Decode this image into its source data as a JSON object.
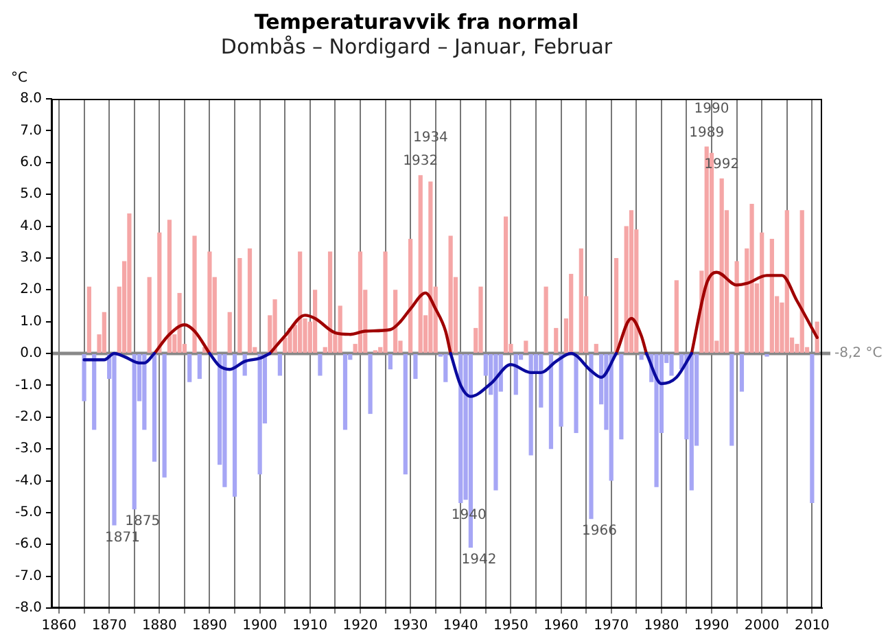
{
  "chart_data": {
    "type": "bar",
    "title": "Temperaturavvik fra normal",
    "subtitle": "Dombås – Nordigard – Januar, Februar",
    "ylabel": "°C",
    "x": [
      1865,
      1866,
      1867,
      1868,
      1869,
      1870,
      1871,
      1872,
      1873,
      1874,
      1875,
      1876,
      1877,
      1878,
      1879,
      1880,
      1881,
      1882,
      1883,
      1884,
      1885,
      1886,
      1887,
      1888,
      1889,
      1890,
      1891,
      1892,
      1893,
      1894,
      1895,
      1896,
      1897,
      1898,
      1899,
      1900,
      1901,
      1902,
      1903,
      1904,
      1905,
      1906,
      1907,
      1908,
      1909,
      1910,
      1911,
      1912,
      1913,
      1914,
      1915,
      1916,
      1917,
      1918,
      1919,
      1920,
      1921,
      1922,
      1923,
      1924,
      1925,
      1926,
      1927,
      1928,
      1929,
      1930,
      1931,
      1932,
      1933,
      1934,
      1935,
      1936,
      1937,
      1938,
      1939,
      1940,
      1941,
      1942,
      1943,
      1944,
      1945,
      1946,
      1947,
      1948,
      1949,
      1950,
      1951,
      1952,
      1953,
      1954,
      1955,
      1956,
      1957,
      1958,
      1959,
      1960,
      1961,
      1962,
      1963,
      1964,
      1965,
      1966,
      1967,
      1968,
      1969,
      1970,
      1971,
      1972,
      1973,
      1974,
      1975,
      1976,
      1977,
      1978,
      1979,
      1980,
      1981,
      1982,
      1983,
      1984,
      1985,
      1986,
      1987,
      1988,
      1989,
      1990,
      1991,
      1992,
      1993,
      1994,
      1995,
      1996,
      1997,
      1998,
      1999,
      2000,
      2001,
      2002,
      2003,
      2004,
      2005,
      2006,
      2007,
      2008,
      2009,
      2010,
      2011
    ],
    "series": [
      {
        "values": [
          -1.5,
          2.1,
          -2.4,
          0.6,
          1.3,
          -0.8,
          -5.4,
          2.1,
          2.9,
          4.4,
          -4.9,
          -1.5,
          -2.4,
          2.4,
          -3.4,
          3.8,
          -3.9,
          4.2,
          0.6,
          1.9,
          0.3,
          -0.9,
          3.7,
          -0.8,
          0.2,
          3.2,
          2.4,
          -3.5,
          -4.2,
          1.3,
          -4.5,
          3.0,
          -0.7,
          3.3,
          0.2,
          -3.8,
          -2.2,
          1.2,
          1.7,
          -0.7,
          0.5,
          0.8,
          0.9,
          3.2,
          1.1,
          1.0,
          2.0,
          -0.7,
          0.2,
          3.2,
          0.6,
          1.5,
          -2.4,
          -0.2,
          0.3,
          3.2,
          2.0,
          -1.9,
          0.1,
          0.2,
          3.2,
          -0.5,
          2.0,
          0.4,
          -3.8,
          3.6,
          -0.8,
          5.6,
          1.2,
          5.4,
          2.1,
          -0.1,
          -0.9,
          3.7,
          2.4,
          -4.7,
          -4.6,
          -6.1,
          0.8,
          2.1,
          -0.7,
          -1.3,
          -4.3,
          -1.2,
          4.3,
          0.3,
          -1.3,
          -0.2,
          0.4,
          -3.2,
          -0.6,
          -1.7,
          2.1,
          -3.0,
          0.8,
          -2.3,
          1.1,
          2.5,
          -2.5,
          3.3,
          1.8,
          -5.2,
          0.3,
          -1.6,
          -2.4,
          -4.0,
          3.0,
          -2.7,
          4.0,
          4.5,
          3.9,
          -0.2,
          null,
          -0.9,
          -4.2,
          -2.5,
          -0.3,
          -0.7,
          2.3,
          -0.5,
          -2.7,
          -4.3,
          -2.9,
          2.6,
          6.5,
          6.3,
          0.4,
          5.5,
          4.5,
          -2.9,
          2.9,
          -1.2,
          3.3,
          4.7,
          2.2,
          3.8,
          -0.1,
          3.6,
          1.8,
          1.6,
          4.5,
          0.5,
          0.3,
          4.5,
          0.2,
          -4.7,
          1.0
        ],
        "colors": [
          "#a6a6f5",
          "#f5a6a6",
          "#a6a6f5",
          "#f5a6a6",
          "#f5a6a6",
          "#a6a6f5",
          "#a6a6f5",
          "#f5a6a6",
          "#f5a6a6",
          "#f5a6a6",
          "#a6a6f5",
          "#a6a6f5",
          "#a6a6f5",
          "#f5a6a6",
          "#a6a6f5",
          "#f5a6a6",
          "#a6a6f5",
          "#f5a6a6",
          "#f5a6a6",
          "#f5a6a6",
          "#f5a6a6",
          "#a6a6f5",
          "#f5a6a6",
          "#a6a6f5",
          "#f5a6a6",
          "#f5a6a6",
          "#f5a6a6",
          "#a6a6f5",
          "#a6a6f5",
          "#f5a6a6",
          "#a6a6f5",
          "#f5a6a6",
          "#a6a6f5",
          "#f5a6a6",
          "#f5a6a6",
          "#a6a6f5",
          "#a6a6f5",
          "#f5a6a6",
          "#f5a6a6",
          "#a6a6f5",
          "#f5a6a6",
          "#f5a6a6",
          "#f5a6a6",
          "#f5a6a6",
          "#f5a6a6",
          "#f5a6a6",
          "#f5a6a6",
          "#a6a6f5",
          "#f5a6a6",
          "#f5a6a6",
          "#f5a6a6",
          "#f5a6a6",
          "#a6a6f5",
          "#a6a6f5",
          "#f5a6a6",
          "#f5a6a6",
          "#f5a6a6",
          "#a6a6f5",
          "#f5a6a6",
          "#f5a6a6",
          "#f5a6a6",
          "#a6a6f5",
          "#f5a6a6",
          "#f5a6a6",
          "#a6a6f5",
          "#f5a6a6",
          "#a6a6f5",
          "#f5a6a6",
          "#f5a6a6",
          "#f5a6a6",
          "#f5a6a6",
          "#a6a6f5",
          "#a6a6f5",
          "#f5a6a6",
          "#f5a6a6",
          "#a6a6f5",
          "#a6a6f5",
          "#a6a6f5",
          "#f5a6a6",
          "#f5a6a6",
          "#a6a6f5",
          "#a6a6f5",
          "#a6a6f5",
          "#a6a6f5",
          "#f5a6a6",
          "#f5a6a6",
          "#a6a6f5",
          "#a6a6f5",
          "#f5a6a6",
          "#a6a6f5",
          "#a6a6f5",
          "#a6a6f5",
          "#f5a6a6",
          "#a6a6f5",
          "#f5a6a6",
          "#a6a6f5",
          "#f5a6a6",
          "#f5a6a6",
          "#a6a6f5",
          "#f5a6a6",
          "#f5a6a6",
          "#a6a6f5",
          "#f5a6a6",
          "#a6a6f5",
          "#a6a6f5",
          "#a6a6f5",
          "#f5a6a6",
          "#a6a6f5",
          "#f5a6a6",
          "#f5a6a6",
          "#f5a6a6",
          "#a6a6f5",
          "#a6a6f5",
          "#a6a6f5",
          "#a6a6f5",
          "#a6a6f5",
          "#a6a6f5",
          "#a6a6f5",
          "#f5a6a6",
          "#a6a6f5",
          "#a6a6f5",
          "#a6a6f5",
          "#a6a6f5",
          "#f5a6a6",
          "#f5a6a6",
          "#f5a6a6",
          "#f5a6a6",
          "#f5a6a6",
          "#f5a6a6",
          "#a6a6f5",
          "#f5a6a6",
          "#a6a6f5",
          "#f5a6a6",
          "#f5a6a6",
          "#f5a6a6",
          "#f5a6a6",
          "#a6a6f5",
          "#f5a6a6",
          "#f5a6a6",
          "#f5a6a6",
          "#f5a6a6",
          "#f5a6a6",
          "#f5a6a6",
          "#f5a6a6",
          "#f5a6a6",
          "#a6a6f5",
          "#f5a6a6"
        ]
      },
      {
        "type": "line",
        "color": "#0a0a9e",
        "x": [
          1865,
          1869,
          1871,
          1873,
          1876,
          1877,
          1879,
          1885,
          1890,
          1892,
          1894,
          1897,
          1900,
          1902,
          1920,
          1938,
          1940,
          1942,
          1946,
          1950,
          1954,
          1956,
          1959,
          1962,
          1966,
          1968,
          1971,
          1974,
          1977,
          1980,
          1983,
          1986
        ],
        "values": [
          -0.2,
          -0.2,
          0.0,
          -0.1,
          -0.3,
          -0.3,
          0.0,
          null,
          0.0,
          -0.4,
          -0.5,
          -0.25,
          -0.15,
          0.0,
          null,
          0.0,
          -1.0,
          -1.35,
          -0.95,
          -0.35,
          -0.6,
          -0.6,
          -0.25,
          0.0,
          -0.55,
          -0.75,
          0.0,
          null,
          0.0,
          -0.95,
          -0.75,
          0.0
        ]
      },
      {
        "type": "line",
        "color": "#a00000",
        "x": [
          1879,
          1882,
          1885,
          1887,
          1890,
          1895,
          1902,
          1905,
          1909,
          1911,
          1915,
          1918,
          1921,
          1926,
          1928,
          1930,
          1933,
          1935,
          1937,
          1938,
          1955,
          1971,
          1974,
          1976,
          1977,
          1980,
          1986,
          1989,
          1991,
          1995,
          1997,
          2001,
          2004,
          2007,
          2011
        ],
        "values": [
          0.0,
          0.6,
          0.9,
          0.7,
          0.0,
          null,
          0.0,
          0.55,
          1.2,
          1.1,
          0.65,
          0.6,
          0.7,
          0.75,
          1.0,
          1.4,
          1.9,
          1.4,
          0.7,
          0.0,
          null,
          0.0,
          1.1,
          0.55,
          0.0,
          null,
          0.0,
          2.2,
          2.55,
          2.15,
          2.2,
          2.45,
          2.45,
          1.65,
          0.5
        ]
      }
    ],
    "marker": "none",
    "xlim": [
      1858.5,
      2012
    ],
    "xticks": [
      1860,
      {
        "value": 1865,
        "label": null
      },
      1870,
      {
        "value": 1875,
        "label": null
      },
      1880,
      {
        "value": 1885,
        "label": null
      },
      1890,
      {
        "value": 1895,
        "label": null
      },
      1900,
      {
        "value": 1905,
        "label": null
      },
      1910,
      {
        "value": 1915,
        "label": null
      },
      1920,
      {
        "value": 1925,
        "label": null
      },
      1930,
      {
        "value": 1935,
        "label": null
      },
      1940,
      {
        "value": 1945,
        "label": null
      },
      1950,
      {
        "value": 1955,
        "label": null
      },
      1960,
      {
        "value": 1965,
        "label": null
      },
      1970,
      {
        "value": 1975,
        "label": null
      },
      1980,
      {
        "value": 1985,
        "label": null
      },
      1990,
      {
        "value": 1995,
        "label": null
      },
      2000,
      {
        "value": 2005,
        "label": null
      },
      2010
    ],
    "ylim": [
      -8,
      8
    ],
    "yticks": [
      {
        "value": -8,
        "label": "-8.0"
      },
      {
        "value": -7,
        "label": "-7.0"
      },
      {
        "value": -6,
        "label": "-6.0"
      },
      {
        "value": -5,
        "label": "-5.0"
      },
      {
        "value": -4,
        "label": "-4.0"
      },
      {
        "value": -3,
        "label": "-3.0"
      },
      {
        "value": -2,
        "label": "-2.0"
      },
      {
        "value": -1,
        "label": "-1.0"
      },
      {
        "value": 0,
        "label": "0.0"
      },
      {
        "value": 1,
        "label": "1.0"
      },
      {
        "value": 2,
        "label": "2.0"
      },
      {
        "value": 3,
        "label": "3.0"
      },
      {
        "value": 4,
        "label": "4.0"
      },
      {
        "value": 5,
        "label": "5.0"
      },
      {
        "value": 6,
        "label": "6.0"
      },
      {
        "value": 7,
        "label": "7.0"
      },
      {
        "value": 8,
        "label": "8.0"
      }
    ],
    "grid": "x",
    "ref_lines": [
      {
        "axis": "y",
        "value": 0,
        "label": "-8,2 °C",
        "color": "#888888"
      }
    ],
    "annotations": [
      {
        "text": "1871",
        "x": 1871,
        "y": -5.4
      },
      {
        "text": "1875",
        "x": 1875,
        "y": -4.9
      },
      {
        "text": "1932",
        "x": 1932,
        "y": 5.6
      },
      {
        "text": "1934",
        "x": 1934,
        "y": 5.4
      },
      {
        "text": "1940",
        "x": 1940,
        "y": -4.7
      },
      {
        "text": "1942",
        "x": 1942,
        "y": -6.1
      },
      {
        "text": "1966",
        "x": 1966,
        "y": -5.2
      },
      {
        "text": "1989",
        "x": 1989,
        "y": 6.5
      },
      {
        "text": "1990",
        "x": 1990,
        "y": 6.3
      },
      {
        "text": "1992",
        "x": 1992,
        "y": 5.5
      }
    ]
  }
}
